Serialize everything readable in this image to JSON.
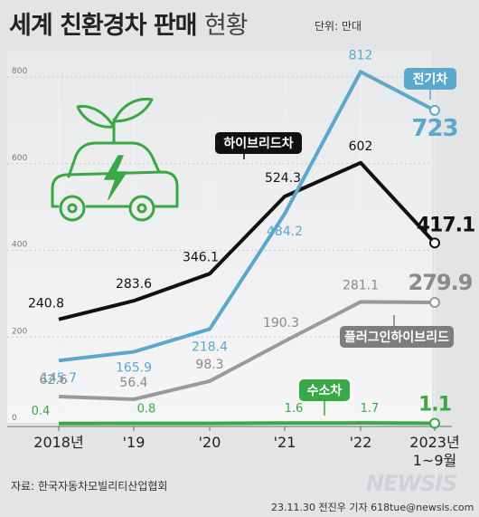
{
  "header": {
    "title": "세계 친환경차 판매",
    "title_light": "현황",
    "unit": "단위: 만대"
  },
  "footer": {
    "source": "자료: 한국자동차모빌리티산업협회",
    "credit": "23.11.30 전진우 기자 618tue@newsis.com",
    "watermark": "NEWSIS"
  },
  "chart_data": {
    "type": "line",
    "categories": [
      "2018년",
      "'19",
      "'20",
      "'21",
      "'22",
      "2023년\n1~9월"
    ],
    "ylim": [
      0,
      850
    ],
    "yticks": [
      0,
      200,
      400,
      600,
      800
    ],
    "grid": true,
    "series": [
      {
        "name": "전기차",
        "values": [
          145.7,
          165.9,
          218.4,
          484.2,
          812,
          723
        ],
        "labels": [
          "145.7",
          "165.9",
          "218.4",
          "484.2",
          "812",
          "723"
        ],
        "color": "#5ba8cc",
        "label_color": "#5ba8cc",
        "badge_color": "#5ba8cc"
      },
      {
        "name": "하이브리드차",
        "values": [
          240.8,
          283.6,
          346.1,
          524.3,
          602,
          417.1
        ],
        "labels": [
          "240.8",
          "283.6",
          "346.1",
          "524.3",
          "602",
          "417.1"
        ],
        "color": "#111111",
        "label_color": "#111111",
        "badge_color": "#111111"
      },
      {
        "name": "플러그인하이브리드",
        "values": [
          62.6,
          56.4,
          98.3,
          190.3,
          281.1,
          279.9
        ],
        "labels": [
          "62.6",
          "56.4",
          "98.3",
          "190.3",
          "281.1",
          "279.9"
        ],
        "color": "#9a9a9a",
        "label_color": "#8a8a8a",
        "badge_color": "#7d7d7d"
      },
      {
        "name": "수소차",
        "values": [
          0.4,
          0.8,
          0.8,
          1.6,
          1.7,
          1.1
        ],
        "labels": [
          "0.4",
          "0.8",
          "",
          "1.6",
          "1.7",
          "1.1"
        ],
        "color": "#3aa845",
        "label_color": "#3aa845",
        "badge_color": "#3aa845"
      }
    ]
  },
  "illustration": {
    "icon": "eco-car-sprout-bolt-icon"
  }
}
